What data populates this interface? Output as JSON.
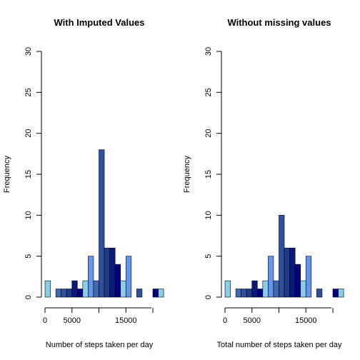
{
  "chart_data": [
    {
      "type": "bar",
      "subtype": "histogram",
      "title": "With Imputed Values",
      "xlabel": "Number of steps taken per day",
      "ylabel": "Frequency",
      "ylim": [
        0,
        30
      ],
      "yticks": [
        0,
        5,
        10,
        15,
        20,
        25,
        30
      ],
      "xticks": [
        0,
        5000,
        15000
      ],
      "xaxis_range": [
        0,
        20000
      ],
      "bin_width": 1000,
      "bins_start": [
        0,
        1000,
        2000,
        3000,
        4000,
        5000,
        6000,
        7000,
        8000,
        9000,
        10000,
        11000,
        12000,
        13000,
        14000,
        15000,
        16000,
        17000,
        18000,
        19000,
        20000,
        21000
      ],
      "values": [
        2,
        0,
        1,
        1,
        1,
        2,
        1,
        2,
        5,
        2,
        18,
        6,
        6,
        4,
        2,
        5,
        0,
        1,
        0,
        0,
        1,
        1
      ],
      "colors": [
        "#87CEEB",
        "#6495ED",
        "#4169B0",
        "#2F4F9F",
        "#1E3A8A",
        "#0A1A7A",
        "#000080"
      ],
      "grid": false,
      "legend": "none"
    },
    {
      "type": "bar",
      "subtype": "histogram",
      "title": "Without missing values",
      "xlabel": "Total number of steps taken per day",
      "ylabel": "Frequency",
      "ylim": [
        0,
        30
      ],
      "yticks": [
        0,
        5,
        10,
        15,
        20,
        25,
        30
      ],
      "xticks": [
        0,
        5000,
        15000
      ],
      "xaxis_range": [
        0,
        20000
      ],
      "bin_width": 1000,
      "bins_start": [
        0,
        1000,
        2000,
        3000,
        4000,
        5000,
        6000,
        7000,
        8000,
        9000,
        10000,
        11000,
        12000,
        13000,
        14000,
        15000,
        16000,
        17000,
        18000,
        19000,
        20000,
        21000
      ],
      "values": [
        2,
        0,
        1,
        1,
        1,
        2,
        1,
        2,
        5,
        2,
        10,
        6,
        6,
        4,
        2,
        5,
        0,
        1,
        0,
        0,
        1,
        1
      ],
      "colors": [
        "#87CEEB",
        "#6495ED",
        "#4169B0",
        "#2F4F9F",
        "#1E3A8A",
        "#0A1A7A",
        "#000080"
      ],
      "grid": false,
      "legend": "none"
    }
  ]
}
